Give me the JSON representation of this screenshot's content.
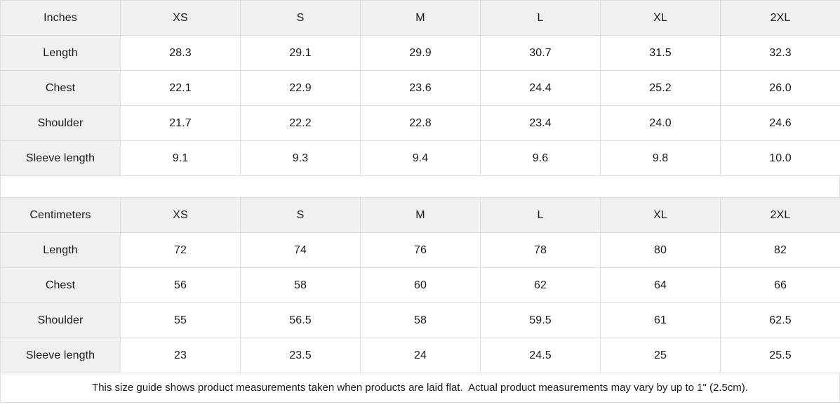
{
  "colors": {
    "header_bg": "#f0f0f1",
    "border": "#dedede",
    "text": "#1a1a1a",
    "page_bg": "#ffffff"
  },
  "inches": {
    "unit": "Inches",
    "sizes": [
      "XS",
      "S",
      "M",
      "L",
      "XL",
      "2XL"
    ],
    "rows": [
      {
        "label": "Length",
        "values": [
          "28.3",
          "29.1",
          "29.9",
          "30.7",
          "31.5",
          "32.3"
        ]
      },
      {
        "label": "Chest",
        "values": [
          "22.1",
          "22.9",
          "23.6",
          "24.4",
          "25.2",
          "26.0"
        ]
      },
      {
        "label": "Shoulder",
        "values": [
          "21.7",
          "22.2",
          "22.8",
          "23.4",
          "24.0",
          "24.6"
        ]
      },
      {
        "label": "Sleeve length",
        "values": [
          "9.1",
          "9.3",
          "9.4",
          "9.6",
          "9.8",
          "10.0"
        ]
      }
    ]
  },
  "centimeters": {
    "unit": "Centimeters",
    "sizes": [
      "XS",
      "S",
      "M",
      "L",
      "XL",
      "2XL"
    ],
    "rows": [
      {
        "label": "Length",
        "values": [
          "72",
          "74",
          "76",
          "78",
          "80",
          "82"
        ]
      },
      {
        "label": "Chest",
        "values": [
          "56",
          "58",
          "60",
          "62",
          "64",
          "66"
        ]
      },
      {
        "label": "Shoulder",
        "values": [
          "55",
          "56.5",
          "58",
          "59.5",
          "61",
          "62.5"
        ]
      },
      {
        "label": "Sleeve length",
        "values": [
          "23",
          "23.5",
          "24",
          "24.5",
          "25",
          "25.5"
        ]
      }
    ]
  },
  "footer": {
    "note": "This size guide shows product measurements taken when products are laid flat.  Actual product measurements may vary by up to 1\" (2.5cm)."
  }
}
